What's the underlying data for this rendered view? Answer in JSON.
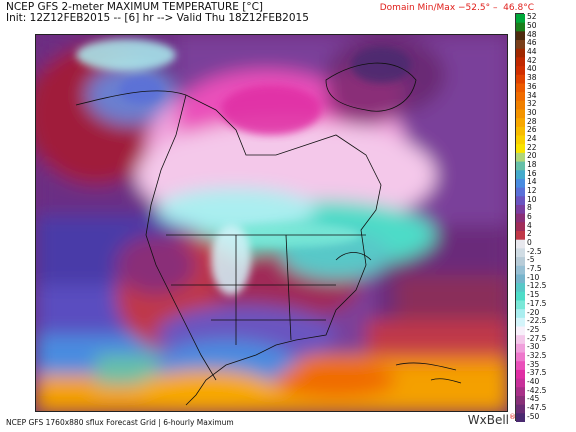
{
  "header": {
    "line1": "NCEP GFS 2-meter MAXIMUM TEMPERATURE [°C]",
    "line2": "Init: 12Z12FEB2015 -- [6] hr --> Valid Thu 18Z12FEB2015",
    "domain_minmax": "Domain Min/Max −52.5° –  46.8°C"
  },
  "footer": {
    "text": "NCEP GFS 1760x880 sflux Forecast Grid | 6-hourly Maximum",
    "brand": "WxBell"
  },
  "colorbar": {
    "labels": [
      "52",
      "50",
      "48",
      "46",
      "44",
      "42",
      "40",
      "38",
      "36",
      "34",
      "32",
      "30",
      "28",
      "26",
      "24",
      "22",
      "20",
      "18",
      "16",
      "14",
      "12",
      "10",
      "8",
      "6",
      "4",
      "2",
      "0",
      "-2.5",
      "-5",
      "-7.5",
      "-10",
      "-12.5",
      "-15",
      "-17.5",
      "-20",
      "-22.5",
      "-25",
      "-27.5",
      "-30",
      "-32.5",
      "-35",
      "-37.5",
      "-40",
      "-42.5",
      "-45",
      "-47.5",
      "-50"
    ],
    "colors": [
      "#00a83a",
      "#1b7f1b",
      "#4d2a0e",
      "#7a3f1a",
      "#a02800",
      "#c02800",
      "#d02e00",
      "#e04200",
      "#ec5a00",
      "#f06c00",
      "#f08000",
      "#f49400",
      "#f8a800",
      "#f8bc00",
      "#fad000",
      "#fae400",
      "#b0d67a",
      "#66c0a8",
      "#44aacc",
      "#4a8ce0",
      "#5a70d8",
      "#6a54c0",
      "#7a3ea0",
      "#8a2f78",
      "#a02c58",
      "#c03848",
      "#e8e8ee",
      "#d0dce4",
      "#b8ccd8",
      "#98c0d4",
      "#78b4cc",
      "#58c8c8",
      "#4edcc8",
      "#7ae8d8",
      "#aaeef0",
      "#d4f4fa",
      "#f8f0fa",
      "#f4c8ea",
      "#f0a0dc",
      "#ee78cc",
      "#ea50ba",
      "#e02ea4",
      "#c8309a",
      "#a83088",
      "#883078",
      "#6a2c74",
      "#4a2a70"
    ]
  },
  "map": {
    "variable": "2-meter maximum temperature",
    "units": "°C",
    "region": "North America"
  }
}
